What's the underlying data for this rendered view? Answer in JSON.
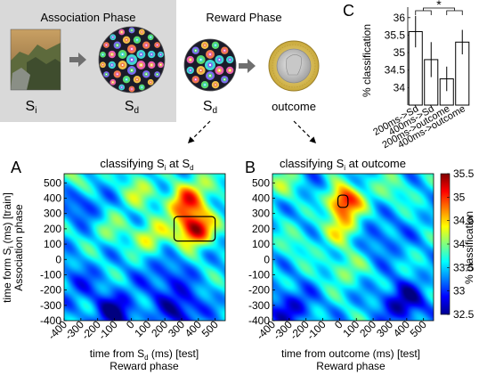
{
  "association": {
    "title": "Association Phase",
    "label_landscape": "S",
    "label_landscape_sub": "i",
    "label_fractal": "S",
    "label_fractal_sub": "d",
    "landscape_icon": "landscape-photo-icon",
    "fractal_icon": "fractal-mandala-icon",
    "arrow_icon": "right-arrow-icon"
  },
  "reward": {
    "title": "Reward Phase",
    "label_fractal": "S",
    "label_fractal_sub": "d",
    "label_outcome": "outcome",
    "coin_icon": "pound-coin-icon",
    "arrow_icon": "right-arrow-icon"
  },
  "panel_labels": {
    "A": "A",
    "B": "B",
    "C": "C"
  },
  "shared": {
    "ylabel": "time form S",
    "ylabel_sub": "i",
    "ylabel_rest": " (ms) [train]",
    "ylabel2": "Association phase",
    "xlabel_phase": "Reward phase"
  },
  "colorbar": {
    "min": 32.5,
    "max": 35.5,
    "ticks": [
      "35.5",
      "35",
      "34.5",
      "34",
      "33.5",
      "33",
      "32.5"
    ],
    "label": "% classification",
    "colormap": "jet"
  },
  "chart_data": [
    {
      "type": "heatmap",
      "title_pre": "classifying S",
      "title_sub1": "i",
      "title_mid": " at S",
      "title_sub2": "d",
      "xlabel_pre": "time from S",
      "xlabel_sub": "d",
      "xlabel_post": " (ms) [test]",
      "xlim": [
        -400,
        560
      ],
      "ylim": [
        -400,
        560
      ],
      "xticks": [
        "-400",
        "-300",
        "-200",
        "-100",
        "0",
        "100",
        "200",
        "300",
        "400",
        "500"
      ],
      "yticks": [
        "500",
        "400",
        "300",
        "200",
        "100",
        "0",
        "-100",
        "-200",
        "-300",
        "-400"
      ],
      "peaks": [
        {
          "x": 380,
          "y": 200,
          "value": 35.4
        },
        {
          "x": 320,
          "y": 370,
          "value": 34.9
        },
        {
          "x": 120,
          "y": 150,
          "value": 34.3
        },
        {
          "x": -320,
          "y": 520,
          "value": 34.0
        },
        {
          "x": 40,
          "y": 440,
          "value": 34.1
        },
        {
          "x": -130,
          "y": 200,
          "value": 33.9
        },
        {
          "x": 450,
          "y": 480,
          "value": 34.0
        }
      ],
      "troughs": [
        {
          "x": -100,
          "y": -350,
          "value": 32.6
        },
        {
          "x": 300,
          "y": -330,
          "value": 32.7
        },
        {
          "x": -300,
          "y": 380,
          "value": 33.0
        },
        {
          "x": 200,
          "y": -120,
          "value": 33.0
        },
        {
          "x": -330,
          "y": -150,
          "value": 33.1
        }
      ],
      "significant_cluster": {
        "x": [
          255,
          500
        ],
        "y": [
          120,
          280
        ]
      }
    },
    {
      "type": "heatmap",
      "title_pre": "classifying S",
      "title_sub1": "i",
      "title_mid": " at outcome",
      "title_sub2": "",
      "xlabel": "time from outcome (ms) [test]",
      "xlim": [
        -400,
        560
      ],
      "ylim": [
        -400,
        560
      ],
      "xticks": [
        "-400",
        "-300",
        "-200",
        "-100",
        "0",
        "100",
        "200",
        "300",
        "400",
        "500"
      ],
      "yticks": [
        "500",
        "400",
        "300",
        "200",
        "100",
        "0",
        "-100",
        "-200",
        "-300",
        "-400"
      ],
      "peaks": [
        {
          "x": 20,
          "y": 380,
          "value": 35.3
        },
        {
          "x": 20,
          "y": 200,
          "value": 34.3
        },
        {
          "x": 30,
          "y": -60,
          "value": 34.0
        },
        {
          "x": -330,
          "y": 480,
          "value": 34.0
        },
        {
          "x": 300,
          "y": 450,
          "value": 33.9
        },
        {
          "x": -250,
          "y": 100,
          "value": 33.8
        }
      ],
      "troughs": [
        {
          "x": 380,
          "y": -280,
          "value": 32.6
        },
        {
          "x": -300,
          "y": -320,
          "value": 32.8
        },
        {
          "x": 250,
          "y": 150,
          "value": 33.1
        },
        {
          "x": -100,
          "y": 420,
          "value": 33.2
        }
      ],
      "significant_cluster": {
        "x": [
          -10,
          50
        ],
        "y": [
          340,
          420
        ]
      }
    },
    {
      "type": "bar",
      "categories": [
        "200ms->Sd",
        "400ms->Sd",
        "200ms->outcome",
        "400ms->outcome"
      ],
      "category_sub_d": [
        "d",
        "d",
        "",
        ""
      ],
      "values": [
        35.6,
        34.8,
        34.25,
        35.3
      ],
      "errors": [
        0.45,
        0.5,
        0.35,
        0.35
      ],
      "ylabel": "% classification",
      "ylim": [
        33.5,
        36.3
      ],
      "yticks": [
        "36",
        "35.5",
        "35",
        "34.5",
        "34"
      ],
      "significance": "*"
    }
  ]
}
